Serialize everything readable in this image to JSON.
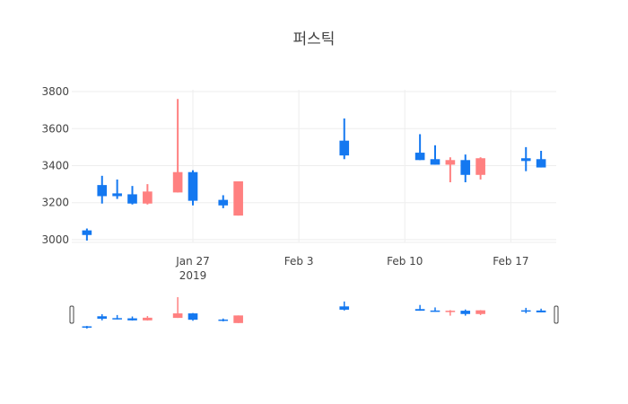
{
  "chart_data": {
    "type": "candlestick",
    "title": "퍼스틱",
    "xlabel": "",
    "ylabel": "",
    "ylim": [
      2985,
      3810
    ],
    "xlim": [
      "2019-01-19",
      "2019-02-20"
    ],
    "yticks": [
      3000,
      3200,
      3400,
      3600,
      3800
    ],
    "xticks": [
      {
        "date": "2019-01-27",
        "label": "Jan 27",
        "sublabel": "2019"
      },
      {
        "date": "2019-02-03",
        "label": "Feb 3",
        "sublabel": ""
      },
      {
        "date": "2019-02-10",
        "label": "Feb 10",
        "sublabel": ""
      },
      {
        "date": "2019-02-17",
        "label": "Feb 17",
        "sublabel": ""
      }
    ],
    "grid": true,
    "rangeslider": true,
    "increasing_color": "#ff8080",
    "decreasing_color": "#1478f0",
    "candles": [
      {
        "date": "2019-01-20",
        "open": 3050,
        "high": 3060,
        "low": 2995,
        "close": 3025
      },
      {
        "date": "2019-01-21",
        "open": 3295,
        "high": 3345,
        "low": 3195,
        "close": 3235
      },
      {
        "date": "2019-01-22",
        "open": 3250,
        "high": 3325,
        "low": 3220,
        "close": 3235
      },
      {
        "date": "2019-01-23",
        "open": 3245,
        "high": 3290,
        "low": 3190,
        "close": 3195
      },
      {
        "date": "2019-01-24",
        "open": 3195,
        "high": 3300,
        "low": 3190,
        "close": 3260
      },
      {
        "date": "2019-01-26",
        "open": 3255,
        "high": 3760,
        "low": 3255,
        "close": 3365
      },
      {
        "date": "2019-01-27",
        "open": 3365,
        "high": 3375,
        "low": 3185,
        "close": 3210
      },
      {
        "date": "2019-01-29",
        "open": 3215,
        "high": 3240,
        "low": 3170,
        "close": 3185
      },
      {
        "date": "2019-01-30",
        "open": 3130,
        "high": 3315,
        "low": 3130,
        "close": 3315
      },
      {
        "date": "2019-02-06",
        "open": 3535,
        "high": 3655,
        "low": 3435,
        "close": 3455
      },
      {
        "date": "2019-02-11",
        "open": 3470,
        "high": 3570,
        "low": 3430,
        "close": 3430
      },
      {
        "date": "2019-02-12",
        "open": 3435,
        "high": 3510,
        "low": 3405,
        "close": 3405
      },
      {
        "date": "2019-02-13",
        "open": 3405,
        "high": 3445,
        "low": 3310,
        "close": 3430
      },
      {
        "date": "2019-02-14",
        "open": 3430,
        "high": 3460,
        "low": 3310,
        "close": 3350
      },
      {
        "date": "2019-02-15",
        "open": 3350,
        "high": 3445,
        "low": 3325,
        "close": 3440
      },
      {
        "date": "2019-02-18",
        "open": 3440,
        "high": 3500,
        "low": 3370,
        "close": 3425
      },
      {
        "date": "2019-02-19",
        "open": 3435,
        "high": 3480,
        "low": 3390,
        "close": 3390
      }
    ]
  }
}
